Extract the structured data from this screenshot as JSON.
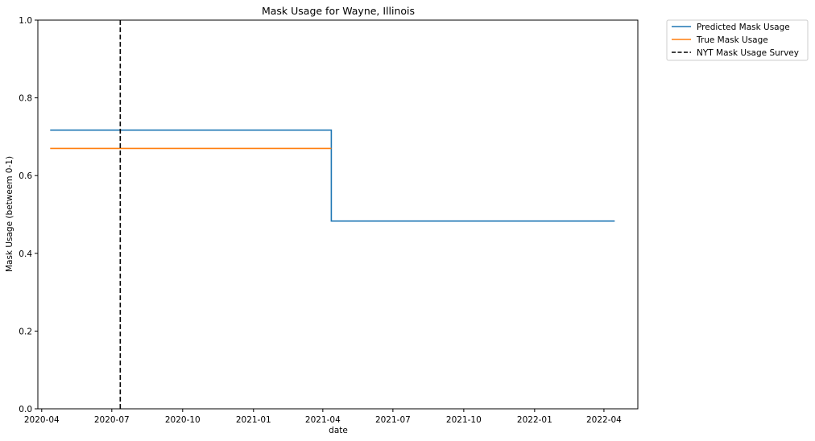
{
  "chart_data": {
    "type": "line",
    "title": "Mask Usage for Wayne, Illinois",
    "xlabel": "date",
    "ylabel": "Mask Usage (betweem 0-1)",
    "xlim": [
      "2020-03-27",
      "2022-05-15"
    ],
    "ylim": [
      0,
      1
    ],
    "x_ticks": [
      "2020-04",
      "2020-07",
      "2020-10",
      "2021-01",
      "2021-04",
      "2021-07",
      "2021-10",
      "2022-01",
      "2022-04"
    ],
    "y_ticks": [
      "0.0",
      "0.2",
      "0.4",
      "0.6",
      "0.8",
      "1.0"
    ],
    "grid": false,
    "legend_placement": "outside top-right",
    "series": [
      {
        "name": "Predicted Mask Usage",
        "color": "#1f77b4",
        "style": "step",
        "points": [
          {
            "x": "2020-04-12",
            "y": 0.717
          },
          {
            "x": "2021-04-12",
            "y": 0.717
          },
          {
            "x": "2021-04-12",
            "y": 0.483
          },
          {
            "x": "2022-04-15",
            "y": 0.483
          }
        ]
      },
      {
        "name": "True Mask Usage",
        "color": "#ff7f0e",
        "style": "line",
        "points": [
          {
            "x": "2020-04-12",
            "y": 0.67
          },
          {
            "x": "2021-04-12",
            "y": 0.67
          }
        ]
      },
      {
        "name": "NYT Mask Usage Survey",
        "color": "#000000",
        "style": "dashed-vertical",
        "x": "2020-07-12"
      }
    ]
  }
}
